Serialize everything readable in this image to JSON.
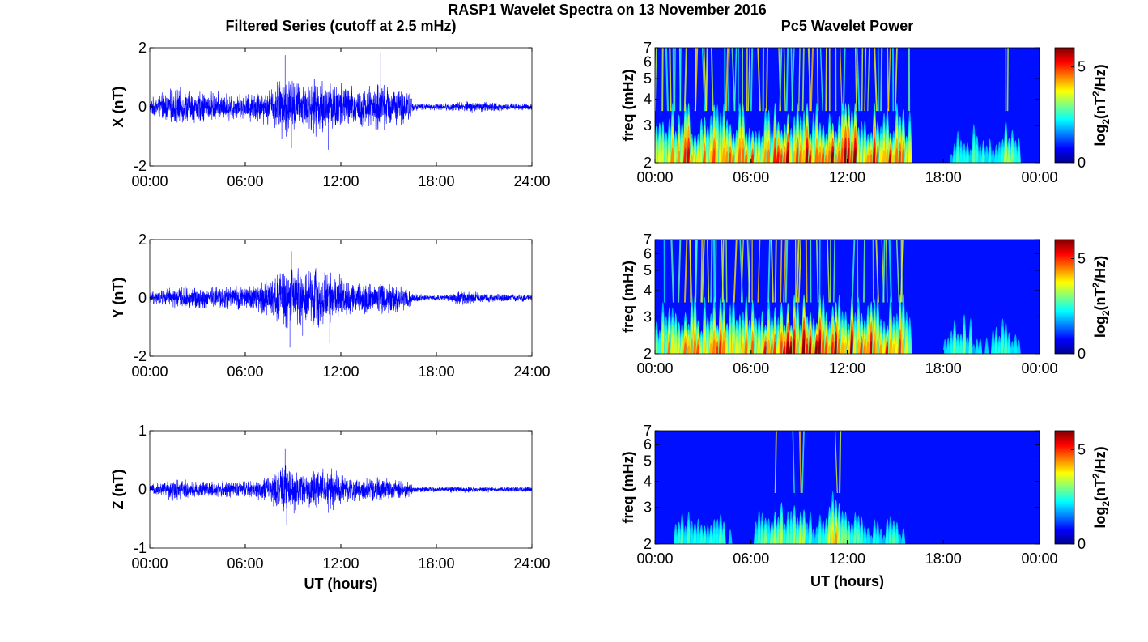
{
  "title": "RASP1 Wavelet Spectra on 13 November 2016",
  "chart_data": [
    {
      "type": "line",
      "panel": "series-x",
      "title": "Filtered Series (cutoff at 2.5 mHz)",
      "ylabel": "X (nT)",
      "xlabel": "",
      "xlim": [
        0,
        24
      ],
      "ylim": [
        -2,
        2
      ],
      "yticks": [
        "-2",
        "0",
        "2"
      ],
      "xticks": [
        "00:00",
        "06:00",
        "12:00",
        "18:00",
        "24:00"
      ],
      "series": [
        {
          "color": "#0000ff",
          "envelope": {
            "hours": [
              0,
              1.5,
              3,
              4.5,
              6,
              7.5,
              8.5,
              9.5,
              10.5,
              11.5,
              12.5,
              13.5,
              14.5,
              15.5,
              16.4,
              16.5,
              17.5,
              18.5,
              19.5,
              20.5,
              21.5,
              22.5,
              24
            ],
            "amplitude": [
              0.3,
              0.7,
              0.6,
              0.55,
              0.5,
              0.7,
              1.3,
              0.9,
              1.05,
              1.15,
              0.8,
              0.75,
              0.95,
              0.7,
              0.6,
              0.15,
              0.12,
              0.13,
              0.2,
              0.22,
              0.18,
              0.15,
              0.12
            ]
          },
          "peaks": [
            {
              "hour": 1.4,
              "value": -1.25
            },
            {
              "hour": 8.5,
              "value": 1.75
            },
            {
              "hour": 8.9,
              "value": -1.4
            },
            {
              "hour": 11.2,
              "value": -1.45
            },
            {
              "hour": 14.5,
              "value": 1.85
            },
            {
              "hour": 11.0,
              "value": 1.3
            }
          ]
        }
      ]
    },
    {
      "type": "line",
      "panel": "series-y",
      "title": "",
      "ylabel": "Y (nT)",
      "xlabel": "",
      "xlim": [
        0,
        24
      ],
      "ylim": [
        -2,
        2
      ],
      "yticks": [
        "-2",
        "0",
        "2"
      ],
      "xticks": [
        "00:00",
        "06:00",
        "12:00",
        "18:00",
        "24:00"
      ],
      "series": [
        {
          "color": "#0000ff",
          "envelope": {
            "hours": [
              0,
              1.5,
              3,
              4.5,
              6,
              7.5,
              8.5,
              9.5,
              10.5,
              11.5,
              12.5,
              13.5,
              14.5,
              15.5,
              16.4,
              16.5,
              17.5,
              18.5,
              19.5,
              20.5,
              21.5,
              22.5,
              24
            ],
            "amplitude": [
              0.25,
              0.4,
              0.45,
              0.45,
              0.45,
              0.75,
              1.25,
              1.1,
              1.2,
              1.05,
              0.7,
              0.6,
              0.65,
              0.6,
              0.45,
              0.2,
              0.1,
              0.12,
              0.28,
              0.22,
              0.14,
              0.16,
              0.14
            ]
          },
          "peaks": [
            {
              "hour": 8.9,
              "value": 1.6
            },
            {
              "hour": 8.8,
              "value": -1.7
            },
            {
              "hour": 11.0,
              "value": 1.25
            },
            {
              "hour": 11.3,
              "value": -1.55
            },
            {
              "hour": 9.6,
              "value": -1.3
            }
          ]
        }
      ]
    },
    {
      "type": "line",
      "panel": "series-z",
      "title": "",
      "ylabel": "Z (nT)",
      "xlabel": "UT (hours)",
      "xlim": [
        0,
        24
      ],
      "ylim": [
        -1,
        1
      ],
      "yticks": [
        "-1",
        "0",
        "1"
      ],
      "xticks": [
        "00:00",
        "06:00",
        "12:00",
        "18:00",
        "24:00"
      ],
      "series": [
        {
          "color": "#0000ff",
          "envelope": {
            "hours": [
              0,
              1.5,
              3,
              4.5,
              6,
              7.5,
              8.5,
              9.5,
              10.5,
              11.5,
              12.5,
              13.5,
              14.5,
              15.5,
              16.4,
              16.5,
              17.5,
              18.5,
              19.5,
              20.5,
              21.5,
              22.5,
              24
            ],
            "amplitude": [
              0.08,
              0.22,
              0.16,
              0.16,
              0.16,
              0.25,
              0.5,
              0.35,
              0.35,
              0.4,
              0.25,
              0.2,
              0.22,
              0.18,
              0.14,
              0.06,
              0.05,
              0.05,
              0.07,
              0.06,
              0.05,
              0.05,
              0.05
            ]
          },
          "peaks": [
            {
              "hour": 1.4,
              "value": 0.55
            },
            {
              "hour": 8.5,
              "value": 0.7
            },
            {
              "hour": 8.6,
              "value": -0.6
            },
            {
              "hour": 11.0,
              "value": 0.45
            },
            {
              "hour": 11.2,
              "value": -0.4
            }
          ]
        }
      ]
    },
    {
      "type": "heatmap",
      "panel": "power-x",
      "title": "Pc5 Wavelet Power",
      "ylabel": "freq (mHz)",
      "xlabel": "",
      "xlim": [
        0,
        24
      ],
      "ylim": [
        2,
        7
      ],
      "yscale": "log",
      "yticks": [
        "2",
        "3",
        "4",
        "5",
        "6",
        "7"
      ],
      "xticks": [
        "00:00",
        "06:00",
        "12:00",
        "18:00",
        "00:00"
      ],
      "colorbar": {
        "colormap": "jet",
        "range": [
          0,
          6
        ],
        "ticks": [
          "0",
          "5"
        ],
        "label_pre": "log",
        "label_sub": "2",
        "label_mid": "(nT",
        "label_sup": "2",
        "label_post": "/Hz)"
      },
      "activity": {
        "hours": [
          0,
          1,
          2,
          3,
          4,
          5,
          6,
          7,
          8,
          9,
          10,
          11,
          12,
          13,
          14,
          15,
          15.8,
          16.1,
          17,
          18,
          19,
          20,
          21,
          22,
          23,
          24
        ],
        "level": [
          0.55,
          0.8,
          0.85,
          0.8,
          0.75,
          0.75,
          0.75,
          0.8,
          0.9,
          0.95,
          0.9,
          0.95,
          0.95,
          0.85,
          0.85,
          0.85,
          0.8,
          0.12,
          0.1,
          0.12,
          0.35,
          0.35,
          0.28,
          0.55,
          0.2,
          0.08
        ]
      }
    },
    {
      "type": "heatmap",
      "panel": "power-y",
      "title": "",
      "ylabel": "freq (mHz)",
      "xlabel": "",
      "xlim": [
        0,
        24
      ],
      "ylim": [
        2,
        7
      ],
      "yscale": "log",
      "yticks": [
        "2",
        "3",
        "4",
        "5",
        "6",
        "7"
      ],
      "xticks": [
        "00:00",
        "06:00",
        "12:00",
        "18:00",
        "00:00"
      ],
      "colorbar": {
        "colormap": "jet",
        "range": [
          0,
          6
        ],
        "ticks": [
          "0",
          "5"
        ],
        "label_pre": "log",
        "label_sub": "2",
        "label_mid": "(nT",
        "label_sup": "2",
        "label_post": "/Hz)"
      },
      "activity": {
        "hours": [
          0,
          1,
          2,
          3,
          4,
          5,
          6,
          7,
          8,
          9,
          10,
          11,
          12,
          13,
          14,
          15,
          15.8,
          16.1,
          17,
          18,
          19,
          20,
          21,
          22,
          23,
          24
        ],
        "level": [
          0.45,
          0.7,
          0.78,
          0.8,
          0.8,
          0.75,
          0.78,
          0.85,
          0.95,
          1.0,
          0.95,
          1.0,
          0.95,
          0.85,
          0.85,
          0.8,
          0.78,
          0.12,
          0.1,
          0.2,
          0.45,
          0.3,
          0.25,
          0.4,
          0.2,
          0.1
        ]
      }
    },
    {
      "type": "heatmap",
      "panel": "power-z",
      "title": "",
      "ylabel": "freq (mHz)",
      "xlabel": "UT (hours)",
      "xlim": [
        0,
        24
      ],
      "ylim": [
        2,
        7
      ],
      "yscale": "log",
      "yticks": [
        "2",
        "3",
        "4",
        "5",
        "6",
        "7"
      ],
      "xticks": [
        "00:00",
        "06:00",
        "12:00",
        "18:00",
        "00:00"
      ],
      "colorbar": {
        "colormap": "jet",
        "range": [
          0,
          6
        ],
        "ticks": [
          "0",
          "5"
        ],
        "label_pre": "log",
        "label_sub": "2",
        "label_mid": "(nT",
        "label_sup": "2",
        "label_post": "/Hz)"
      },
      "activity": {
        "hours": [
          0,
          1,
          1.5,
          2,
          3,
          4,
          5,
          6,
          6.5,
          7,
          8,
          9,
          10,
          11,
          11.5,
          12,
          13,
          14,
          15,
          15.8,
          16.1,
          17,
          18,
          19,
          20,
          21,
          22,
          23,
          24
        ],
        "level": [
          0.02,
          0.15,
          0.45,
          0.35,
          0.3,
          0.4,
          0.15,
          0.1,
          0.35,
          0.4,
          0.5,
          0.55,
          0.3,
          0.55,
          0.75,
          0.45,
          0.35,
          0.3,
          0.35,
          0.25,
          0.03,
          0.02,
          0.02,
          0.08,
          0.08,
          0.02,
          0.02,
          0.02,
          0.02
        ]
      }
    }
  ]
}
